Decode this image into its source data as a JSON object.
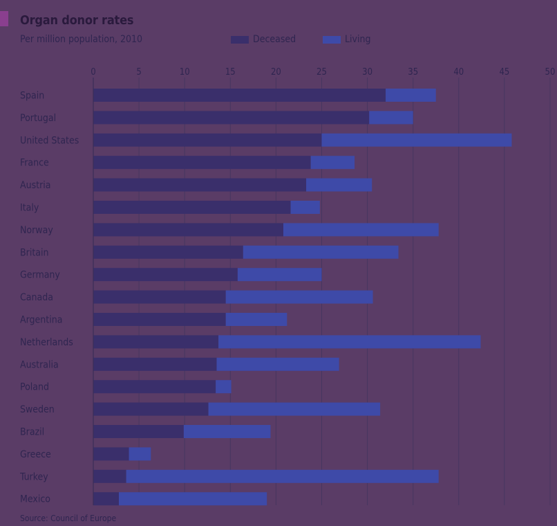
{
  "colors": {
    "background": "#5a3c66",
    "deceased": "#3a2f6b",
    "living": "#3e4aa8",
    "grid": "#463660",
    "text": "#2f2550",
    "accent": "#8a3f8f"
  },
  "chart_data": {
    "type": "bar",
    "orientation": "horizontal",
    "stacked": true,
    "title": "Organ donor rates",
    "subtitle": "Per million population, 2010",
    "source": "Source: Council of Europe",
    "xlim": [
      0,
      50
    ],
    "xticks": [
      0,
      5,
      10,
      15,
      20,
      25,
      30,
      35,
      40,
      45,
      50
    ],
    "grid": true,
    "legend_position": "top",
    "categories": [
      "Spain",
      "Portugal",
      "United States",
      "France",
      "Austria",
      "Italy",
      "Norway",
      "Britain",
      "Germany",
      "Canada",
      "Argentina",
      "Netherlands",
      "Australia",
      "Poland",
      "Sweden",
      "Brazil",
      "Greece",
      "Turkey",
      "Mexico"
    ],
    "series": [
      {
        "name": "Deceased",
        "values": [
          32.0,
          30.2,
          25.0,
          23.8,
          23.3,
          21.6,
          20.8,
          16.4,
          15.8,
          14.5,
          14.5,
          13.7,
          13.5,
          13.4,
          12.6,
          9.9,
          3.9,
          3.6,
          2.8
        ]
      },
      {
        "name": "Living",
        "values": [
          5.5,
          4.8,
          20.8,
          4.8,
          7.2,
          3.2,
          17.0,
          17.0,
          9.2,
          16.1,
          6.7,
          28.7,
          13.4,
          1.7,
          18.8,
          9.5,
          2.4,
          34.2,
          16.2
        ]
      }
    ]
  }
}
